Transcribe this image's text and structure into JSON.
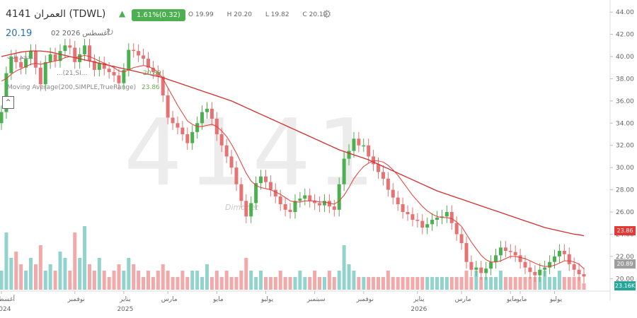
{
  "header": {
    "symbol": "4141",
    "name_ticker": "العمران (TDWL)",
    "change": "1.61%(0.32)",
    "ohlc": {
      "open_label": "O",
      "open": "19.99",
      "high_label": "H",
      "high": "20.20",
      "low_label": "L",
      "low": "19.82",
      "close_label": "C",
      "close": "20.19"
    },
    "last_price": "20.19",
    "last_date": "02 أغسطس 2026",
    "up_arrow": "▲",
    "settings_icon": "gear-icon",
    "refresh_icon": "refresh-icon"
  },
  "legend": {
    "volume_label": "حجم الت...",
    "ma_short_label": "...(21,SI...",
    "ma_short_value": "20.89",
    "ma_long_label": "Moving Average(200,SIMPLE,TrueRange)",
    "ma_long_value": "23.86",
    "collapse_label": "^"
  },
  "watermark": "4141",
  "logo_watermark": "Dimonet",
  "colors": {
    "up": "#4caf50",
    "down": "#e57373",
    "ma_long": "#d32f2f",
    "ma_short": "#e53935",
    "vol_up": "#80cbc4",
    "vol_down": "#ef9a9a",
    "badge_ma_long": "#e53935",
    "badge_ma_short": "#9e9e9e",
    "badge_volume": "#26a69a"
  },
  "right_badges": [
    {
      "value": "23.86",
      "role": "ma-long"
    },
    {
      "value": "20.89",
      "role": "ma-short"
    },
    {
      "value": "23.16K",
      "role": "volume"
    }
  ],
  "chart_data": {
    "type": "candlestick",
    "y_ticks": [
      "44.00",
      "42.00",
      "40.00",
      "38.00",
      "36.00",
      "34.00",
      "32.00",
      "30.00",
      "28.00",
      "26.00",
      "24.00",
      "22.00",
      "20.00"
    ],
    "ylim": [
      19,
      44.2
    ],
    "x_ticks": [
      {
        "label": "أغسطس",
        "year": "2024",
        "i": 0
      },
      {
        "label": "نوفمبر",
        "year": "",
        "i": 15
      },
      {
        "label": "يناير",
        "year": "2025",
        "i": 25
      },
      {
        "label": "مارس",
        "year": "",
        "i": 34
      },
      {
        "label": "مايو",
        "year": "",
        "i": 44
      },
      {
        "label": "يوليو",
        "year": "",
        "i": 54
      },
      {
        "label": "سبتمبر",
        "year": "",
        "i": 64
      },
      {
        "label": "نوفمبر",
        "year": "",
        "i": 74
      },
      {
        "label": "يناير",
        "year": "2026",
        "i": 85
      },
      {
        "label": "مارس",
        "year": "",
        "i": 94
      },
      {
        "label": "مايو",
        "year": "",
        "i": 104
      },
      {
        "label": "مايو",
        "year": "",
        "i": 106
      },
      {
        "label": "يوليو",
        "year": "",
        "i": 113
      }
    ],
    "close": [
      35.0,
      38.5,
      40.0,
      39.5,
      39.0,
      39.8,
      40.5,
      39.0,
      37.5,
      39.5,
      40.2,
      39.6,
      40.5,
      41.0,
      40.8,
      39.5,
      40.2,
      41.0,
      39.6,
      38.8,
      39.4,
      38.9,
      38.6,
      38.3,
      37.6,
      38.8,
      40.6,
      40.5,
      40.1,
      39.8,
      39.0,
      38.6,
      38.2,
      36.5,
      34.5,
      34.0,
      33.6,
      33.0,
      32.2,
      33.2,
      34.0,
      35.0,
      35.3,
      34.4,
      33.0,
      32.0,
      31.0,
      30.0,
      28.5,
      27.0,
      25.6,
      26.8,
      28.6,
      29.2,
      28.7,
      28.0,
      27.4,
      26.7,
      26.2,
      26.0,
      27.0,
      27.2,
      27.5,
      27.0,
      26.8,
      26.6,
      27.0,
      26.5,
      26.2,
      28.5,
      30.8,
      31.5,
      32.6,
      32.0,
      32.0,
      31.0,
      30.3,
      29.6,
      29.0,
      28.0,
      27.3,
      26.7,
      26.0,
      25.8,
      25.3,
      25.2,
      24.6,
      24.9,
      25.3,
      25.5,
      25.6,
      26.0,
      25.0,
      24.0,
      23.2,
      21.5,
      20.8,
      21.0,
      20.5,
      20.9,
      21.5,
      22.1,
      22.8,
      22.5,
      22.4,
      22.1,
      21.5,
      21.0,
      20.6,
      20.3,
      20.8,
      21.0,
      21.5,
      22.0,
      22.5,
      22.2,
      21.3,
      20.8,
      20.4,
      20.19
    ],
    "ma_short": [
      37.8,
      38.0,
      38.4,
      38.7,
      38.9,
      39.1,
      39.3,
      39.4,
      39.3,
      39.4,
      39.5,
      39.6,
      39.7,
      39.9,
      40.0,
      39.9,
      40.0,
      40.1,
      40.0,
      39.8,
      39.6,
      39.4,
      39.2,
      39.0,
      38.7,
      38.6,
      38.8,
      39.0,
      39.1,
      39.2,
      39.1,
      38.9,
      38.6,
      38.0,
      37.2,
      36.4,
      35.6,
      34.9,
      34.2,
      33.9,
      33.7,
      33.7,
      33.8,
      33.9,
      33.7,
      33.3,
      32.8,
      32.1,
      31.3,
      30.4,
      29.5,
      28.8,
      28.4,
      28.2,
      28.1,
      28.0,
      27.8,
      27.6,
      27.3,
      27.0,
      26.9,
      26.9,
      27.0,
      27.0,
      27.0,
      26.9,
      26.9,
      26.8,
      26.7,
      27.0,
      27.5,
      28.2,
      29.0,
      29.6,
      30.1,
      30.4,
      30.6,
      30.6,
      30.5,
      30.2,
      29.8,
      29.3,
      28.7,
      28.1,
      27.5,
      27.0,
      26.5,
      26.1,
      25.8,
      25.6,
      25.5,
      25.5,
      25.4,
      25.1,
      24.7,
      24.0,
      23.3,
      22.7,
      22.1,
      21.7,
      21.5,
      21.5,
      21.6,
      21.8,
      22.0,
      22.0,
      21.9,
      21.8,
      21.6,
      21.4,
      21.2,
      21.1,
      21.1,
      21.2,
      21.4,
      21.6,
      21.6,
      21.5,
      21.3,
      20.89
    ],
    "ma_long": [
      40.0,
      40.1,
      40.2,
      40.3,
      40.4,
      40.45,
      40.5,
      40.5,
      40.5,
      40.45,
      40.4,
      40.3,
      40.2,
      40.1,
      40.0,
      39.9,
      39.8,
      39.7,
      39.6,
      39.5,
      39.4,
      39.3,
      39.2,
      39.1,
      39.0,
      38.9,
      38.8,
      38.7,
      38.6,
      38.5,
      38.4,
      38.3,
      38.2,
      38.1,
      37.95,
      37.8,
      37.65,
      37.5,
      37.35,
      37.2,
      37.05,
      36.9,
      36.75,
      36.6,
      36.45,
      36.3,
      36.15,
      36.0,
      35.8,
      35.6,
      35.4,
      35.2,
      35.0,
      34.8,
      34.6,
      34.4,
      34.2,
      34.0,
      33.8,
      33.6,
      33.4,
      33.2,
      33.0,
      32.8,
      32.6,
      32.4,
      32.2,
      32.0,
      31.8,
      31.6,
      31.45,
      31.3,
      31.15,
      31.0,
      30.85,
      30.7,
      30.5,
      30.3,
      30.1,
      29.9,
      29.7,
      29.5,
      29.3,
      29.1,
      28.9,
      28.7,
      28.5,
      28.3,
      28.1,
      27.9,
      27.75,
      27.6,
      27.45,
      27.3,
      27.15,
      27.0,
      26.85,
      26.7,
      26.55,
      26.4,
      26.25,
      26.1,
      25.95,
      25.8,
      25.65,
      25.5,
      25.35,
      25.2,
      25.05,
      24.9,
      24.75,
      24.6,
      24.5,
      24.4,
      24.3,
      24.2,
      24.1,
      24.0,
      23.95,
      23.86
    ],
    "volume": [
      0.3,
      0.9,
      0.5,
      0.6,
      0.4,
      0.3,
      0.5,
      0.4,
      0.7,
      0.3,
      0.4,
      0.3,
      0.6,
      0.5,
      0.3,
      0.9,
      0.5,
      1.0,
      0.4,
      0.3,
      0.5,
      0.3,
      0.2,
      0.3,
      0.4,
      0.3,
      0.5,
      0.4,
      0.3,
      0.2,
      0.3,
      0.2,
      0.3,
      0.4,
      0.3,
      0.2,
      0.2,
      0.3,
      0.2,
      0.3,
      0.3,
      0.2,
      0.4,
      0.2,
      0.3,
      0.2,
      0.3,
      0.2,
      0.2,
      0.3,
      0.5,
      0.3,
      0.2,
      0.3,
      0.2,
      0.2,
      0.2,
      0.3,
      0.2,
      0.2,
      0.2,
      0.3,
      0.2,
      0.2,
      0.3,
      0.2,
      0.2,
      0.3,
      0.2,
      0.3,
      0.7,
      0.4,
      0.3,
      0.2,
      0.2,
      0.2,
      0.2,
      0.2,
      0.2,
      0.3,
      0.2,
      0.2,
      0.2,
      0.2,
      0.2,
      0.2,
      0.2,
      0.2,
      0.2,
      0.2,
      0.2,
      0.2,
      0.2,
      0.2,
      0.2,
      0.3,
      0.2,
      0.3,
      0.2,
      0.2,
      0.2,
      0.2,
      0.3,
      0.2,
      0.2,
      0.2,
      0.2,
      0.2,
      0.2,
      0.2,
      0.2,
      0.3,
      0.2,
      0.2,
      0.3,
      0.2,
      0.2,
      0.2,
      0.2,
      0.1
    ]
  }
}
